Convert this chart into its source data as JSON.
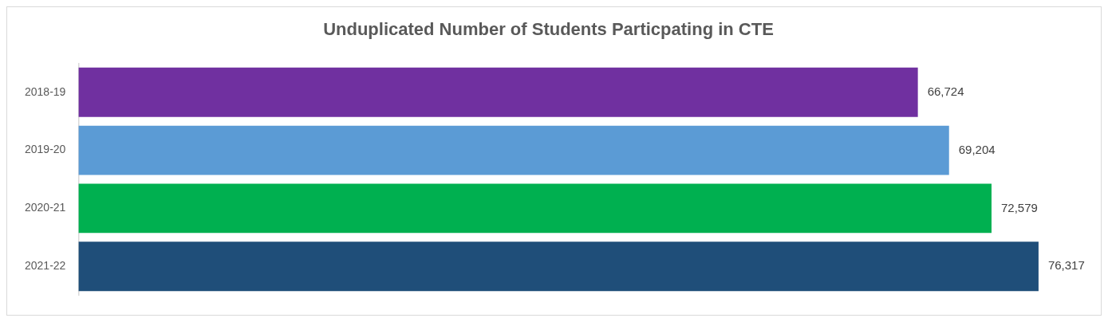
{
  "chart_data": {
    "type": "bar",
    "orientation": "horizontal",
    "title": "Unduplicated Number of Students Particpating in CTE",
    "categories": [
      "2018-19",
      "2019-20",
      "2020-21",
      "2021-22"
    ],
    "values": [
      66724,
      69204,
      72579,
      76317
    ],
    "value_labels": [
      "66,724",
      "69,204",
      "72,579",
      "76,317"
    ],
    "colors": [
      "#7030a0",
      "#5b9bd5",
      "#00b050",
      "#1f4e79"
    ],
    "tick_labels": "y",
    "grid": false,
    "legend": false
  }
}
